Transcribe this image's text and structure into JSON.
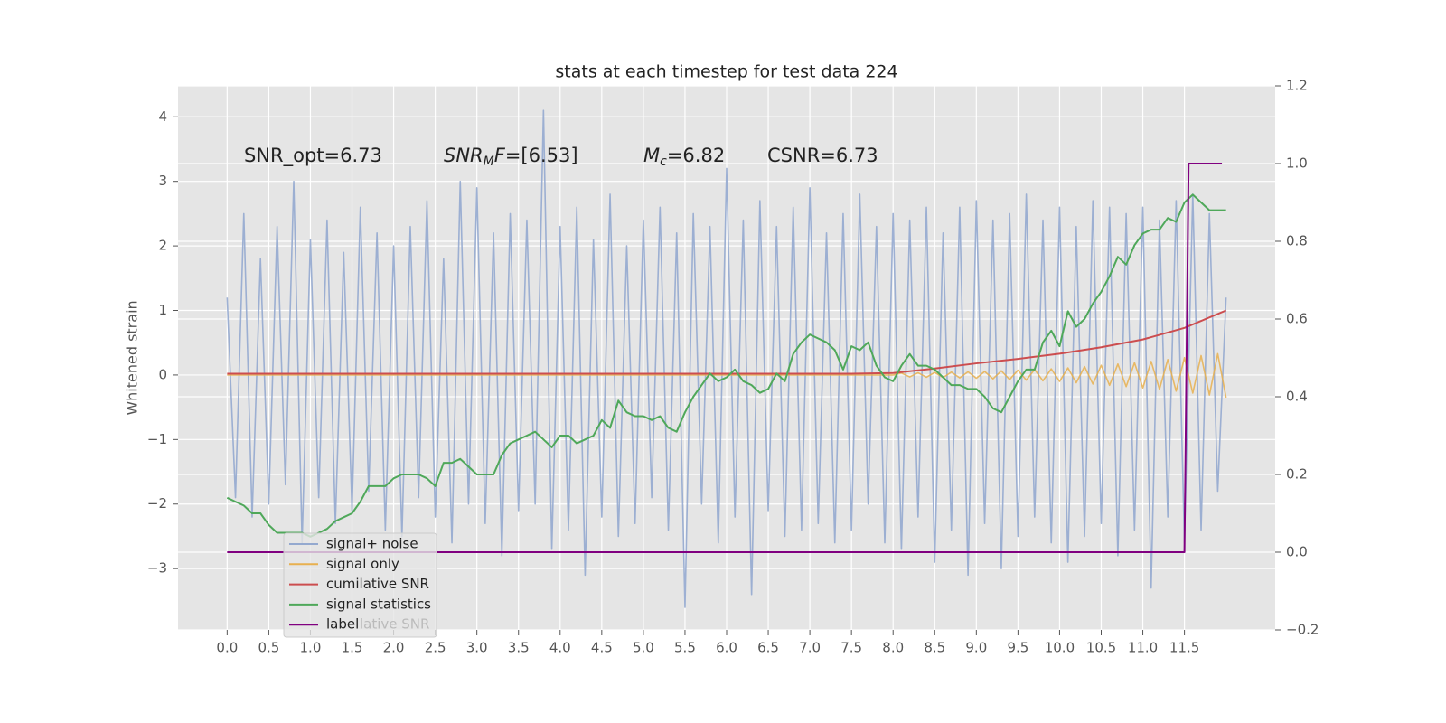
{
  "chart_data": {
    "type": "line",
    "title": "stats at each timestep for test data 224",
    "y_label": "Whitened strain",
    "grid": true,
    "legend": "lower left",
    "legend_ghost_text": "lative SNR",
    "xlim": [
      -0.59,
      12.59
    ],
    "ylim": [
      -3.95,
      4.48
    ],
    "y2lim": [
      -0.2,
      1.2
    ],
    "xticks": [
      {
        "value": 0,
        "label": "0.0"
      },
      0.5,
      {
        "value": 1,
        "label": "1.0"
      },
      1.5,
      {
        "value": 2,
        "label": "2.0"
      },
      2.5,
      {
        "value": 3,
        "label": "3.0"
      },
      3.5,
      {
        "value": 4,
        "label": "4.0"
      },
      4.5,
      {
        "value": 5,
        "label": "5.0"
      },
      5.5,
      {
        "value": 6,
        "label": "6.0"
      },
      6.5,
      {
        "value": 7,
        "label": "7.0"
      },
      7.5,
      {
        "value": 8,
        "label": "8.0"
      },
      8.5,
      {
        "value": 9,
        "label": "9.0"
      },
      9.5,
      {
        "value": 10,
        "label": "10.0"
      },
      10.5,
      {
        "value": 11,
        "label": "11.0"
      },
      11.5
    ],
    "yticks": [
      {
        "value": -3,
        "label": "−3"
      },
      {
        "value": -2,
        "label": "−2"
      },
      {
        "value": -1,
        "label": "−1"
      },
      0,
      1,
      2,
      3,
      4
    ],
    "y2ticks": [
      {
        "value": -0.2,
        "label": "−0.2"
      },
      {
        "value": 0,
        "label": "0.0"
      },
      0.2,
      0.4,
      0.6,
      0.8,
      {
        "value": 1,
        "label": "1.0"
      },
      1.2
    ],
    "annotations": [
      {
        "parts": [
          {
            "text": "SNR_opt=6.73",
            "style": "normal"
          }
        ]
      },
      {
        "parts": [
          {
            "text": "SNR",
            "style": "italic"
          },
          {
            "text": "M",
            "style": "sub"
          },
          {
            "text": "F",
            "style": "italic"
          },
          {
            "text": "=[6.53]",
            "style": "normal"
          }
        ]
      },
      {
        "parts": [
          {
            "text": "M",
            "style": "italic"
          },
          {
            "text": "c",
            "style": "sub"
          },
          {
            "text": "=6.82",
            "style": "normal"
          }
        ]
      },
      {
        "parts": [
          {
            "text": "CSNR=6.73",
            "style": "normal"
          }
        ]
      }
    ],
    "x": [
      0,
      0.1,
      0.2,
      0.3,
      0.4,
      0.5,
      0.6,
      0.7,
      0.8,
      0.9,
      1,
      1.1,
      1.2,
      1.3,
      1.4,
      1.5,
      1.6,
      1.7,
      1.8,
      1.9,
      2,
      2.1,
      2.2,
      2.3,
      2.4,
      2.5,
      2.6,
      2.7,
      2.8,
      2.9,
      3,
      3.1,
      3.2,
      3.3,
      3.4,
      3.5,
      3.6,
      3.7,
      3.8,
      3.9,
      4,
      4.1,
      4.2,
      4.3,
      4.4,
      4.5,
      4.6,
      4.7,
      4.8,
      4.9,
      5,
      5.1,
      5.2,
      5.3,
      5.4,
      5.5,
      5.6,
      5.7,
      5.8,
      5.9,
      6,
      6.1,
      6.2,
      6.3,
      6.4,
      6.5,
      6.6,
      6.7,
      6.8,
      6.9,
      7,
      7.1,
      7.2,
      7.3,
      7.4,
      7.5,
      7.6,
      7.7,
      7.8,
      7.9,
      8,
      8.1,
      8.2,
      8.3,
      8.4,
      8.5,
      8.6,
      8.7,
      8.8,
      8.9,
      9,
      9.1,
      9.2,
      9.3,
      9.4,
      9.5,
      9.6,
      9.7,
      9.8,
      9.9,
      10,
      10.1,
      10.2,
      10.3,
      10.4,
      10.5,
      10.6,
      10.7,
      10.8,
      10.9,
      11,
      11.1,
      11.2,
      11.3,
      11.4,
      11.5,
      11.6,
      11.7,
      11.8,
      11.9,
      12
    ],
    "series": [
      {
        "name": "signal+ noise",
        "color": "#94a9cf",
        "values": [
          1.2,
          -1.9,
          2.5,
          -2.2,
          1.8,
          -2.0,
          2.3,
          -1.7,
          3.0,
          -2.6,
          2.1,
          -1.9,
          2.4,
          -2.3,
          1.9,
          -2.1,
          2.6,
          -1.8,
          2.2,
          -2.4,
          2.0,
          -2.5,
          2.3,
          -1.9,
          2.7,
          -2.2,
          1.8,
          -2.6,
          3.0,
          -2.0,
          2.9,
          -2.3,
          2.2,
          -2.8,
          2.5,
          -2.1,
          2.4,
          -2.0,
          4.1,
          -2.7,
          2.3,
          -2.4,
          2.6,
          -3.1,
          2.1,
          -2.2,
          2.8,
          -2.5,
          2.0,
          -2.3,
          2.4,
          -1.9,
          2.6,
          -2.4,
          2.2,
          -3.6,
          2.5,
          -2.0,
          2.3,
          -2.6,
          3.2,
          -2.2,
          2.4,
          -3.4,
          2.7,
          -2.1,
          2.3,
          -2.5,
          2.6,
          -2.4,
          2.9,
          -2.3,
          2.2,
          -2.6,
          2.5,
          -2.4,
          2.8,
          -2.0,
          2.3,
          -2.6,
          2.5,
          -2.7,
          2.4,
          -2.2,
          2.6,
          -2.9,
          2.2,
          -2.4,
          2.6,
          -3.1,
          2.7,
          -2.3,
          2.4,
          -3.0,
          2.5,
          -2.5,
          2.8,
          -2.2,
          2.4,
          -2.6,
          2.6,
          -2.9,
          2.3,
          -2.5,
          2.7,
          -2.3,
          2.6,
          -2.8,
          2.5,
          -2.4,
          2.6,
          -3.3,
          2.4,
          -2.2,
          2.7,
          -2.6,
          2.8,
          -2.4,
          2.5,
          -1.8,
          1.2
        ]
      },
      {
        "name": "signal only",
        "color": "#e8b04f",
        "values": [
          0,
          0,
          0,
          0,
          0,
          0,
          0,
          0,
          0,
          0,
          0,
          0,
          0,
          0,
          0,
          0,
          0,
          0,
          0,
          0,
          0,
          0,
          0,
          0,
          0,
          0,
          0,
          0,
          0,
          0,
          0,
          0,
          0,
          0,
          0,
          0,
          0,
          0,
          0,
          0,
          0,
          0,
          0,
          0,
          0,
          0,
          0,
          0,
          0,
          0,
          0,
          0,
          0,
          0,
          0,
          0,
          0,
          0,
          0,
          0,
          0,
          0,
          0,
          0,
          0,
          0,
          0,
          0,
          0,
          0,
          0,
          0,
          0,
          0,
          0,
          0,
          0,
          0,
          0,
          0,
          0,
          0.03,
          -0.03,
          0.035,
          -0.035,
          0.04,
          -0.04,
          0.045,
          -0.045,
          0.05,
          -0.05,
          0.055,
          -0.06,
          0.065,
          -0.07,
          0.075,
          -0.08,
          0.085,
          -0.09,
          0.095,
          -0.1,
          0.11,
          -0.12,
          0.13,
          -0.14,
          0.15,
          -0.16,
          0.17,
          -0.18,
          0.19,
          -0.2,
          0.21,
          -0.22,
          0.24,
          -0.25,
          0.27,
          -0.28,
          0.3,
          -0.31,
          0.33,
          -0.35
        ]
      },
      {
        "name": "cumilative SNR",
        "color": "#cc4d4f",
        "x": [
          0,
          7.5,
          8,
          8.5,
          9,
          9.5,
          10,
          10.5,
          11,
          11.5,
          12
        ],
        "values": [
          0.02,
          0.02,
          0.03,
          0.1,
          0.18,
          0.25,
          0.33,
          0.43,
          0.55,
          0.73,
          1.0
        ]
      },
      {
        "name": "signal statistics",
        "color": "#4fa85a",
        "axis": "y2",
        "values": [
          0.14,
          0.13,
          0.12,
          0.1,
          0.1,
          0.07,
          0.05,
          0.05,
          0.05,
          0.05,
          0.04,
          0.05,
          0.06,
          0.08,
          0.09,
          0.1,
          0.13,
          0.17,
          0.17,
          0.17,
          0.19,
          0.2,
          0.2,
          0.2,
          0.19,
          0.17,
          0.23,
          0.23,
          0.24,
          0.22,
          0.2,
          0.2,
          0.2,
          0.25,
          0.28,
          0.29,
          0.3,
          0.31,
          0.29,
          0.27,
          0.3,
          0.3,
          0.28,
          0.29,
          0.3,
          0.34,
          0.32,
          0.39,
          0.36,
          0.35,
          0.35,
          0.34,
          0.35,
          0.32,
          0.31,
          0.36,
          0.4,
          0.43,
          0.46,
          0.44,
          0.45,
          0.47,
          0.44,
          0.43,
          0.41,
          0.42,
          0.46,
          0.44,
          0.51,
          0.54,
          0.56,
          0.55,
          0.54,
          0.52,
          0.47,
          0.53,
          0.52,
          0.54,
          0.48,
          0.45,
          0.44,
          0.48,
          0.51,
          0.48,
          0.48,
          0.47,
          0.45,
          0.43,
          0.43,
          0.42,
          0.42,
          0.4,
          0.37,
          0.36,
          0.4,
          0.44,
          0.47,
          0.47,
          0.54,
          0.57,
          0.53,
          0.62,
          0.58,
          0.6,
          0.64,
          0.67,
          0.71,
          0.76,
          0.74,
          0.79,
          0.82,
          0.83,
          0.83,
          0.86,
          0.85,
          0.9,
          0.92,
          0.9,
          0.88,
          0.88,
          0.88
        ]
      },
      {
        "name": "label",
        "color": "#800080",
        "axis": "y2",
        "x": [
          0,
          11.5,
          11.55,
          11.95
        ],
        "values": [
          0,
          0,
          1,
          1
        ]
      }
    ]
  }
}
